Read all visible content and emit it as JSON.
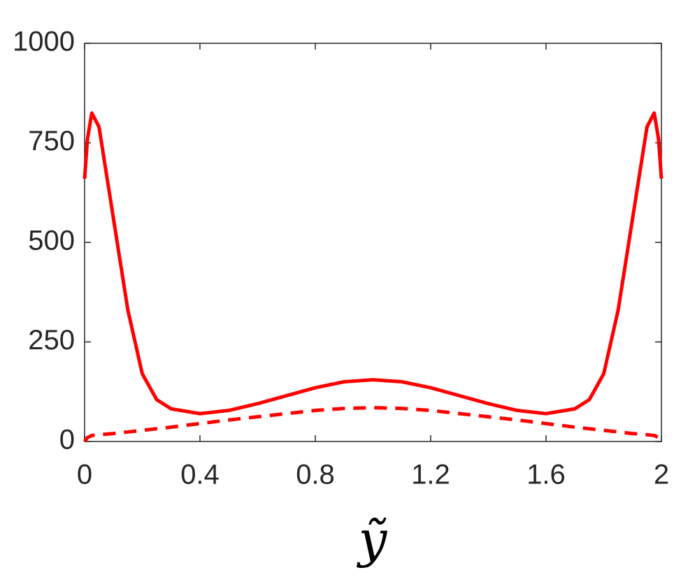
{
  "chart_data": {
    "type": "line",
    "x_label": "ỹ",
    "x": [
      0,
      0.01,
      0.025,
      0.05,
      0.1,
      0.15,
      0.2,
      0.25,
      0.3,
      0.4,
      0.5,
      0.6,
      0.7,
      0.8,
      0.9,
      1.0,
      1.1,
      1.2,
      1.3,
      1.4,
      1.5,
      1.6,
      1.7,
      1.75,
      1.8,
      1.85,
      1.9,
      1.95,
      1.975,
      1.99,
      2.0
    ],
    "series": [
      {
        "color": "#ff0000",
        "style": "solid",
        "values": [
          660,
          760,
          825,
          790,
          560,
          330,
          170,
          105,
          82,
          70,
          78,
          95,
          115,
          135,
          150,
          155,
          150,
          135,
          115,
          95,
          78,
          70,
          82,
          105,
          170,
          330,
          560,
          790,
          825,
          760,
          660
        ]
      },
      {
        "color": "#ff0000",
        "style": "dashed",
        "values": [
          0,
          10,
          15,
          17,
          20,
          24,
          28,
          32,
          36,
          45,
          54,
          62,
          70,
          78,
          83,
          85,
          83,
          78,
          70,
          62,
          54,
          45,
          36,
          32,
          28,
          24,
          20,
          17,
          15,
          10,
          0
        ]
      }
    ],
    "xlim": [
      0,
      2
    ],
    "xticks": [
      0,
      0.4,
      0.8,
      1.2,
      1.6,
      2
    ],
    "ylim": [
      0,
      1000
    ],
    "yticks": [
      0,
      250,
      500,
      750,
      1000
    ]
  }
}
